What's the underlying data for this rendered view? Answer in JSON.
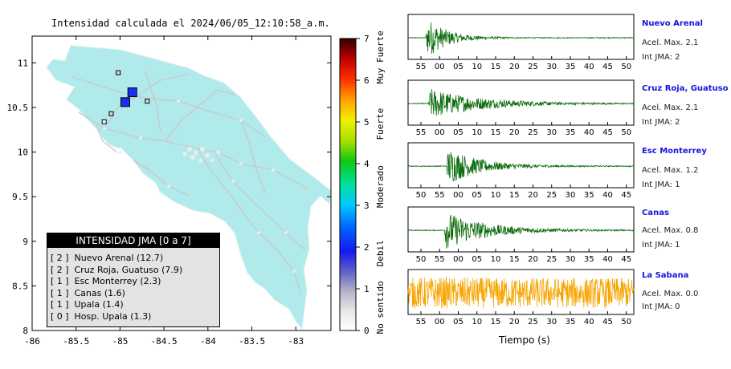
{
  "map": {
    "title": "Intensidad calculada el 2024/06/05_12:10:58_a.m.",
    "lon_range": [
      -86,
      -82.6
    ],
    "lat_range": [
      8,
      11.3
    ],
    "x_ticks": [
      "-86",
      "-85.5",
      "-85",
      "-84.5",
      "-84",
      "-83.5",
      "-83"
    ],
    "y_ticks": [
      "11",
      "10.5",
      "10",
      "9.5",
      "9",
      "8.5",
      "8"
    ],
    "land_color": "#b1eaeb",
    "station_markers": [
      {
        "name": "Nuevo Arenal",
        "lon": -84.86,
        "lat": 10.67,
        "jma": 2,
        "color": "#1a2ef0"
      },
      {
        "name": "Cruz Roja, Guatuso",
        "lon": -84.94,
        "lat": 10.56,
        "jma": 2,
        "color": "#1a2ef0"
      },
      {
        "name": "Esc Monterrey",
        "lon": -84.69,
        "lat": 10.57,
        "jma": 1,
        "color": "#d8d8d8"
      },
      {
        "name": "Canas",
        "lon": -85.1,
        "lat": 10.43,
        "jma": 1,
        "color": "#d8d8d8"
      },
      {
        "name": "Upala",
        "lon": -85.02,
        "lat": 10.89,
        "jma": 1,
        "color": "#d8d8d8"
      },
      {
        "name": "Hosp. Upala",
        "lon": -85.18,
        "lat": 10.34,
        "jma": 0,
        "color": "#ffffff"
      }
    ]
  },
  "colorbar": {
    "ticks": [
      "7",
      "6",
      "5",
      "4",
      "3",
      "2",
      "1",
      "0"
    ],
    "labels": [
      "Muy Fuerte",
      "Fuerte",
      "Moderado",
      "Debil",
      "No sentido"
    ]
  },
  "legend": {
    "title": "INTENSIDAD JMA [0 a 7]",
    "items": [
      {
        "level": "[ 2 ]",
        "text": "Nuevo Arenal (12.7)"
      },
      {
        "level": "[ 2 ]",
        "text": "Cruz Roja, Guatuso (7.9)"
      },
      {
        "level": "[ 1 ]",
        "text": "Esc Monterrey (2.3)"
      },
      {
        "level": "[ 1 ]",
        "text": "Canas (1.6)"
      },
      {
        "level": "[ 1 ]",
        "text": "Upala (1.4)"
      },
      {
        "level": "[ 0 ]",
        "text": "Hosp. Upala (1.3)"
      }
    ]
  },
  "waveforms": {
    "x_axis_label": "Tiempo (s)",
    "stations": [
      {
        "name": "Nuevo Arenal",
        "accel": "Acel. Max. 2.1",
        "int": "Int JMA: 2",
        "color": "#0b6b0b",
        "ticks": [
          "55",
          "00",
          "05",
          "10",
          "15",
          "20",
          "25",
          "30",
          "35",
          "40",
          "45",
          "50"
        ],
        "onset": 0.08,
        "decay": 0.09,
        "amp": 0.95,
        "noise": 0.02
      },
      {
        "name": "Cruz Roja, Guatuso",
        "accel": "Acel. Max. 2.1",
        "int": "Int JMA: 2",
        "color": "#0b6b0b",
        "ticks": [
          "55",
          "00",
          "05",
          "10",
          "15",
          "20",
          "25",
          "30",
          "35",
          "40",
          "45",
          "50"
        ],
        "onset": 0.09,
        "decay": 0.22,
        "amp": 0.7,
        "noise": 0.02
      },
      {
        "name": "Esc Monterrey",
        "accel": "Acel. Max. 1.2",
        "int": "Int JMA: 1",
        "color": "#0b6b0b",
        "ticks": [
          "50",
          "55",
          "00",
          "05",
          "10",
          "15",
          "20",
          "25",
          "30",
          "35",
          "40",
          "45"
        ],
        "onset": 0.17,
        "decay": 0.14,
        "amp": 0.85,
        "noise": 0.02
      },
      {
        "name": "Canas",
        "accel": "Acel. Max. 0.8",
        "int": "Int JMA: 1",
        "color": "#0b6b0b",
        "ticks": [
          "50",
          "55",
          "00",
          "05",
          "10",
          "15",
          "20",
          "25",
          "30",
          "35",
          "40",
          "45"
        ],
        "onset": 0.16,
        "decay": 0.18,
        "amp": 0.85,
        "noise": 0.02
      },
      {
        "name": "La Sabana",
        "accel": "Acel. Max. 0.0",
        "int": "Int JMA: 0",
        "color": "#f7a500",
        "ticks": [
          "55",
          "00",
          "05",
          "10",
          "15",
          "20",
          "25",
          "30",
          "35",
          "40",
          "45",
          "50"
        ],
        "onset": 0.0,
        "decay": 10,
        "amp": 0.35,
        "noise": 0.35
      }
    ]
  }
}
